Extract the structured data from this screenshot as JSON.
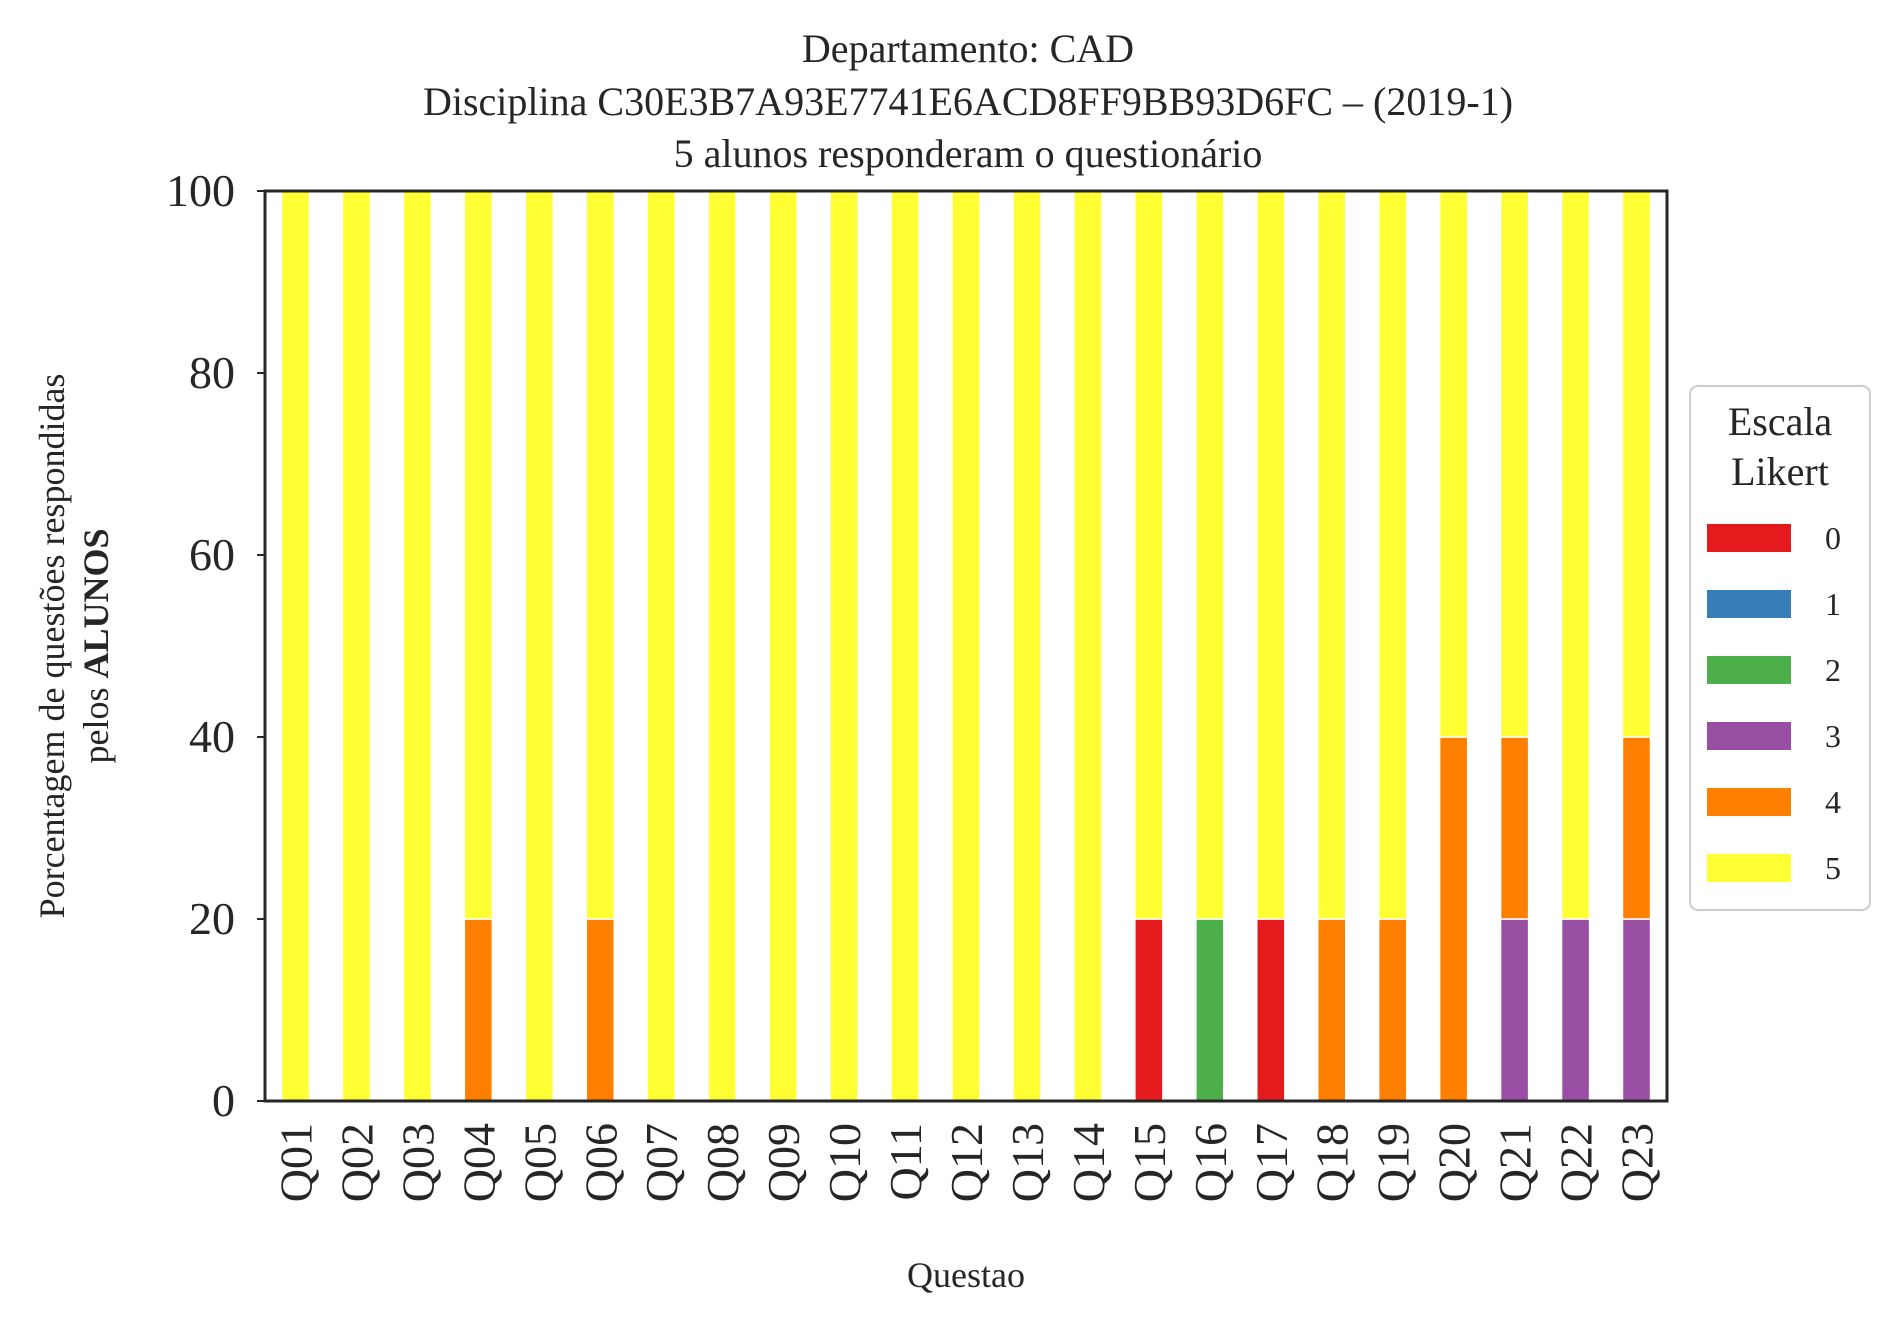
{
  "chart_data": {
    "type": "bar",
    "stacked": true,
    "title_lines": [
      "Departamento: CAD",
      "Disciplina C30E3B7A93E7741E6ACD8FF9BB93D6FC – (2019-1)",
      "5 alunos responderam o questionário"
    ],
    "xlabel": "Questao",
    "ylabel_line1": "Porcentagem de questões respondidas",
    "ylabel_line2_prefix": "pelos ",
    "ylabel_line2_bold": "ALUNOS",
    "ylim": [
      0,
      100
    ],
    "yticks": [
      0,
      20,
      40,
      60,
      80,
      100
    ],
    "categories": [
      "Q01",
      "Q02",
      "Q03",
      "Q04",
      "Q05",
      "Q06",
      "Q07",
      "Q08",
      "Q09",
      "Q10",
      "Q11",
      "Q12",
      "Q13",
      "Q14",
      "Q15",
      "Q16",
      "Q17",
      "Q18",
      "Q19",
      "Q20",
      "Q21",
      "Q22",
      "Q23"
    ],
    "series": [
      {
        "name": "0",
        "color": "#e41a1c",
        "values": [
          0,
          0,
          0,
          0,
          0,
          0,
          0,
          0,
          0,
          0,
          0,
          0,
          0,
          0,
          20,
          0,
          20,
          0,
          0,
          0,
          0,
          0,
          0
        ]
      },
      {
        "name": "1",
        "color": "#377eb8",
        "values": [
          0,
          0,
          0,
          0,
          0,
          0,
          0,
          0,
          0,
          0,
          0,
          0,
          0,
          0,
          0,
          0,
          0,
          0,
          0,
          0,
          0,
          0,
          0
        ]
      },
      {
        "name": "2",
        "color": "#4daf4a",
        "values": [
          0,
          0,
          0,
          0,
          0,
          0,
          0,
          0,
          0,
          0,
          0,
          0,
          0,
          0,
          0,
          20,
          0,
          0,
          0,
          0,
          0,
          0,
          0
        ]
      },
      {
        "name": "3",
        "color": "#984ea3",
        "values": [
          0,
          0,
          0,
          0,
          0,
          0,
          0,
          0,
          0,
          0,
          0,
          0,
          0,
          0,
          0,
          0,
          0,
          0,
          0,
          0,
          20,
          20,
          20
        ]
      },
      {
        "name": "4",
        "color": "#ff7f00",
        "values": [
          0,
          0,
          0,
          20,
          0,
          20,
          0,
          0,
          0,
          0,
          0,
          0,
          0,
          0,
          0,
          0,
          0,
          20,
          20,
          40,
          20,
          0,
          20
        ]
      },
      {
        "name": "5",
        "color": "#ffff33",
        "values": [
          100,
          100,
          100,
          80,
          100,
          80,
          100,
          100,
          100,
          100,
          100,
          100,
          100,
          100,
          80,
          80,
          80,
          80,
          80,
          60,
          60,
          80,
          60
        ]
      }
    ],
    "legend": {
      "title_lines": [
        "Escala",
        "Likert"
      ],
      "position": "right"
    },
    "grid": false
  }
}
